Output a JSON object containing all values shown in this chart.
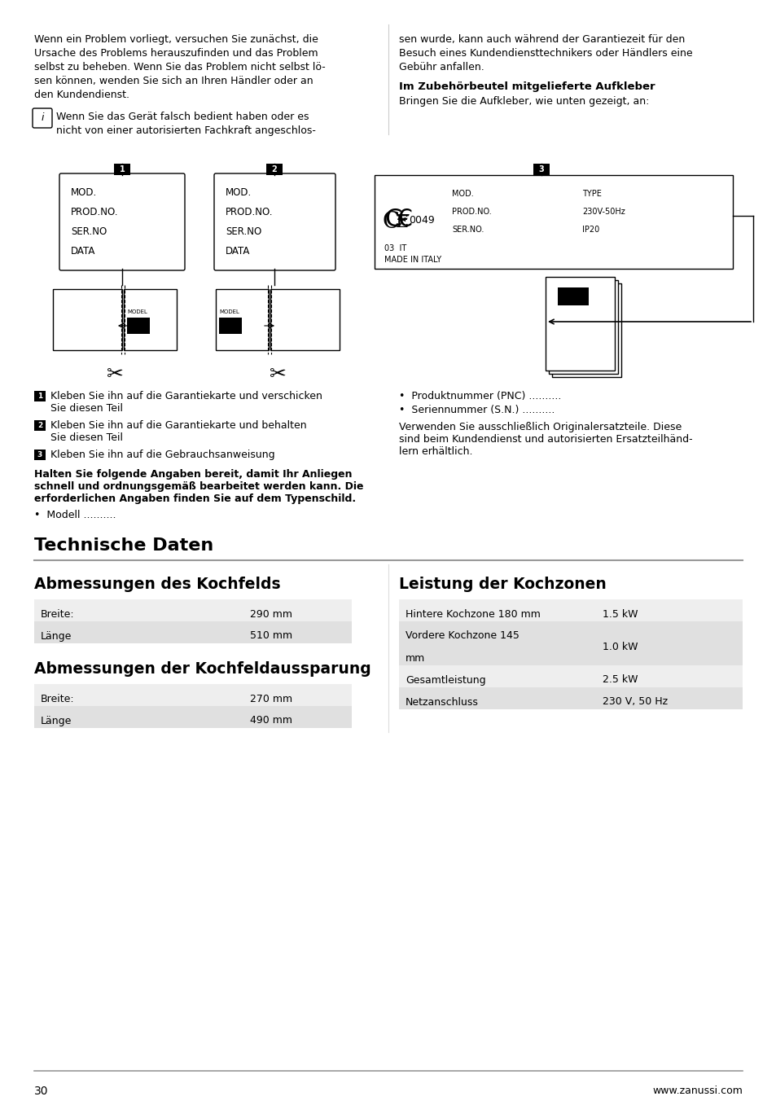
{
  "page_bg": "#ffffff",
  "page_num": "30",
  "website": "www.zanussi.com",
  "top_left_para": "Wenn ein Problem vorliegt, versuchen Sie zunächst, die\nUrsache des Problems herauszufinden und das Problem\nselbst zu beheben. Wenn Sie das Problem nicht selbst lö-\nsen können, wenden Sie sich an Ihren Händler oder an\nden Kundendienst.",
  "info_text_line1": "Wenn Sie das Gerät falsch bedient haben oder es",
  "info_text_line2": "nicht von einer autorisierten Fachkraft angeschlos-",
  "top_right_para": "sen wurde, kann auch während der Garantiezeit für den\nBesuch eines Kundendiensttechnikers oder Händlers eine\nGebühr anfallen.",
  "right_bold_heading": "Im Zubehörbeutel mitgelieferte Aufkleber",
  "right_heading_text": "Bringen Sie die Aufkleber, wie unten gezeigt, an:",
  "label1_lines": [
    "MOD.",
    "PROD.NO.",
    "SER.NO",
    "DATA"
  ],
  "label2_lines": [
    "MOD.",
    "PROD.NO.",
    "SER.NO",
    "DATA"
  ],
  "label3_lines_left": [
    "MOD.",
    "PROD.NO.",
    "SER.NO."
  ],
  "label3_bottom": [
    "03  IT",
    "MADE IN ITALY"
  ],
  "label3_right": [
    "TYPE",
    "230V-50Hz",
    "IP20"
  ],
  "instructions_left": [
    [
      "1",
      "Kleben Sie ihn auf die Garantiekarte und verschicken\nSie diesen Teil"
    ],
    [
      "2",
      "Kleben Sie ihn auf die Garantiekarte und behalten\nSie diesen Teil"
    ],
    [
      "3",
      "Kleben Sie ihn auf die Gebrauchsanweisung"
    ]
  ],
  "bold_instruction": "Halten Sie folgende Angaben bereit, damit Ihr Anliegen\nschnell und ordnungsgemäß bearbeitet werden kann. Die\nerforderlichen Angaben finden Sie auf dem Typenschild.",
  "bullet_left": "•  Modell ..........",
  "instructions_right": [
    "•  Produktnummer (PNC) ..........",
    "•  Seriennummer (S.N.) .........."
  ],
  "right_para": "Verwenden Sie ausschließlich Originalersatzteile. Diese\nsind beim Kundendienst und autorisierten Ersatzteilhänd-\nlern erhältlich.",
  "section_title": "Technische Daten",
  "left_section1_title": "Abmessungen des Kochfelds",
  "left_table1": [
    [
      "Breite:",
      "290 mm"
    ],
    [
      "Länge",
      "510 mm"
    ]
  ],
  "left_section2_title": "Abmessungen der Kochfeldaussparung",
  "left_table2": [
    [
      "Breite:",
      "270 mm"
    ],
    [
      "Länge",
      "490 mm"
    ]
  ],
  "right_section_title": "Leistung der Kochzonen",
  "right_table": [
    [
      "Hintere Kochzone 180 mm",
      "1.5 kW"
    ],
    [
      "Vordere Kochzone 145\nmm",
      "1.0 kW"
    ],
    [
      "Gesamtleistung",
      "2.5 kW"
    ],
    [
      "Netzanschluss",
      "230 V, 50 Hz"
    ]
  ],
  "row_colors": [
    "#eeeeee",
    "#e0e0e0"
  ],
  "divider_color": "#999999",
  "col_divider_color": "#dddddd",
  "body_fs": 9.0,
  "small_fs": 7.5,
  "label_fs": 8.5,
  "section_fs": 16,
  "subsection_fs": 13.5
}
